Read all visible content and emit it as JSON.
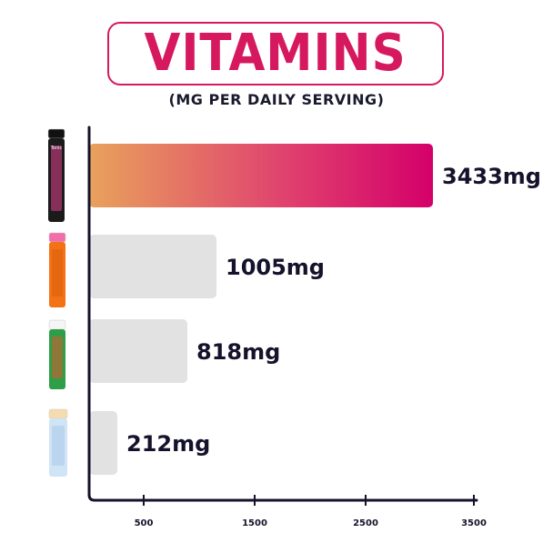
{
  "title": "VITAMINS",
  "subtitle": "(MG PER DAILY SERVING)",
  "colors": {
    "highlight_start": "#e8a25c",
    "highlight_mid": "#e0456e",
    "highlight_end": "#d4006a",
    "bar_grey": "#e2e2e2",
    "axis": "#15132b",
    "title": "#d6195f"
  },
  "chart_data": {
    "type": "bar",
    "orientation": "horizontal",
    "categories": [
      "product-1",
      "product-2",
      "product-3",
      "product-4"
    ],
    "values": [
      3433,
      1005,
      818,
      212
    ],
    "value_labels": [
      "3433mg",
      "1005mg",
      "818mg",
      "212mg"
    ],
    "highlight_index": 0,
    "xlim": [
      0,
      3500
    ],
    "x_ticks": [
      500,
      1500,
      2500,
      3500
    ],
    "x_tick_labels": [
      "500",
      "1500",
      "2500",
      "3500"
    ],
    "grid": false,
    "legend": "none"
  },
  "products": [
    {
      "icon": "black-pink-tube-icon",
      "cap": "#111111",
      "body": "#1b1b1b",
      "accent": "#e0408f",
      "label_text": "Tonic"
    },
    {
      "icon": "orange-tube-icon",
      "cap": "#f06fa8",
      "body": "#f47216",
      "accent": "#d95e0c"
    },
    {
      "icon": "green-tube-icon",
      "cap": "#f5f5f5",
      "body": "#2e9e48",
      "accent": "#e05a2a"
    },
    {
      "icon": "light-blue-tube-icon",
      "cap": "#f5dcae",
      "body": "#cfe4f5",
      "accent": "#a9c9e6"
    }
  ]
}
